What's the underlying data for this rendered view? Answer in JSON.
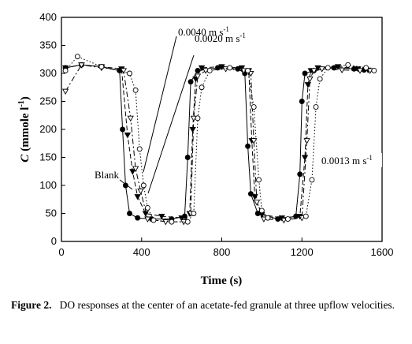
{
  "chart_data": {
    "type": "line",
    "xlabel": "Time (s)",
    "ylabel_main": "C",
    "ylabel_unit": "(mmole l",
    "ylabel_sup": "-1",
    "ylabel_close": ")",
    "xlim": [
      0,
      1600
    ],
    "ylim": [
      0,
      400
    ],
    "x_ticks": [
      0,
      400,
      800,
      1200,
      1600
    ],
    "y_ticks": [
      0,
      50,
      100,
      150,
      200,
      250,
      300,
      350,
      400
    ],
    "grid": false,
    "annotations": {
      "blank": "Blank",
      "v0040": "0.0040 m s",
      "v0020": "0.0020 m s",
      "v0013": "0.0013 m s",
      "unit_sup": "-1"
    },
    "series": [
      {
        "style": "solid-filled-circle",
        "x": [
          20,
          100,
          200,
          290,
          305,
          320,
          340,
          380,
          450,
          550,
          615,
          630,
          645,
          680,
          780,
          880,
          915,
          930,
          945,
          980,
          1080,
          1170,
          1190,
          1200,
          1215,
          1260,
          1360,
          1460,
          1510
        ],
        "values": [
          310,
          315,
          312,
          305,
          200,
          100,
          50,
          42,
          40,
          40,
          45,
          150,
          285,
          305,
          310,
          308,
          300,
          170,
          85,
          50,
          40,
          45,
          120,
          250,
          300,
          305,
          310,
          308,
          306
        ]
      },
      {
        "style": "dashed-filled-triangle",
        "x": [
          20,
          100,
          200,
          300,
          330,
          355,
          380,
          420,
          500,
          600,
          640,
          655,
          670,
          700,
          800,
          900,
          935,
          950,
          965,
          1000,
          1100,
          1190,
          1215,
          1230,
          1245,
          1280,
          1380,
          1480,
          1530
        ],
        "values": [
          310,
          315,
          312,
          308,
          190,
          125,
          80,
          50,
          45,
          42,
          50,
          200,
          290,
          310,
          312,
          310,
          305,
          180,
          80,
          48,
          42,
          45,
          150,
          280,
          305,
          310,
          312,
          308,
          306
        ]
      },
      {
        "style": "dashdot-open-triangle",
        "x": [
          20,
          100,
          200,
          310,
          345,
          370,
          395,
          430,
          520,
          610,
          645,
          660,
          680,
          720,
          820,
          910,
          945,
          960,
          975,
          1010,
          1110,
          1200,
          1225,
          1240,
          1260,
          1300,
          1400,
          1490,
          1540
        ],
        "values": [
          268,
          315,
          310,
          305,
          220,
          130,
          90,
          40,
          35,
          35,
          50,
          220,
          295,
          305,
          308,
          305,
          300,
          180,
          70,
          40,
          38,
          42,
          180,
          290,
          305,
          308,
          306,
          305,
          305
        ]
      },
      {
        "style": "dotted-open-circle",
        "x": [
          20,
          80,
          200,
          340,
          370,
          390,
          410,
          430,
          460,
          550,
          630,
          660,
          680,
          700,
          740,
          840,
          930,
          960,
          985,
          1000,
          1030,
          1130,
          1220,
          1250,
          1270,
          1290,
          1330,
          1430,
          1520,
          1560
        ],
        "values": [
          305,
          330,
          312,
          300,
          270,
          165,
          100,
          60,
          38,
          35,
          35,
          50,
          220,
          275,
          305,
          310,
          305,
          240,
          110,
          55,
          42,
          40,
          45,
          110,
          240,
          290,
          310,
          315,
          310,
          305
        ]
      }
    ]
  },
  "caption": {
    "label": "Figure 2.",
    "text": "DO responses at the center of an acetate-fed granule at three upflow velocities."
  }
}
